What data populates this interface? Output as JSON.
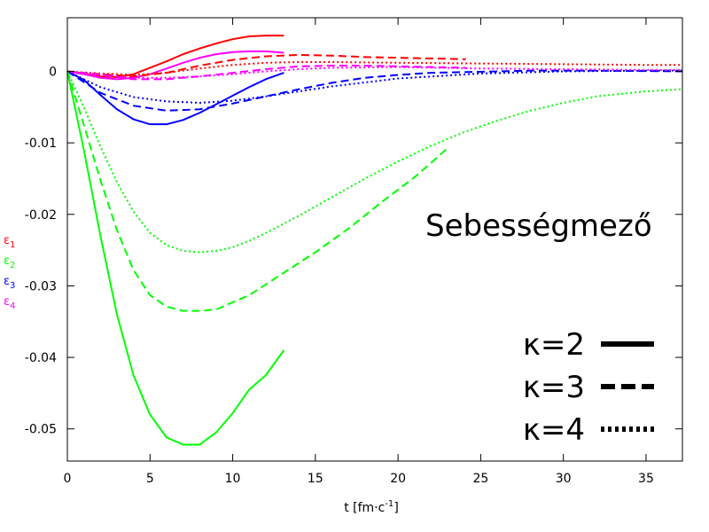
{
  "chart_data": {
    "type": "line",
    "title": "Sebességmező",
    "xlabel": {
      "prefix": "t [fm·c",
      "sup": "-1",
      "suffix": "]"
    },
    "xlim": [
      0,
      37.2
    ],
    "ylim": [
      -0.0545,
      0.0075
    ],
    "xticks": [
      0,
      5,
      10,
      15,
      20,
      25,
      30,
      35
    ],
    "yticks": [
      0,
      -0.01,
      -0.02,
      -0.03,
      -0.04,
      -0.05
    ],
    "ytick_labels": [
      "0",
      "-0.01",
      "-0.02",
      "-0.03",
      "-0.04",
      "-0.05"
    ],
    "grid": false,
    "ylabel_entries": [
      {
        "sym": "ε",
        "sub": "1",
        "color": "#ff0000"
      },
      {
        "sym": "ε",
        "sub": "2",
        "color": "#00ff00"
      },
      {
        "sym": "ε",
        "sub": "3",
        "color": "#0000ff"
      },
      {
        "sym": "ε",
        "sub": "4",
        "color": "#ff00ff"
      }
    ],
    "legend": {
      "position": "bottom-right",
      "entries": [
        {
          "label": "κ=2",
          "dash": "solid"
        },
        {
          "label": "κ=3",
          "dash": "dashed"
        },
        {
          "label": "κ=4",
          "dash": "dotted"
        }
      ]
    },
    "series": [
      {
        "eps": 1,
        "kappa": 2,
        "color": "#ff0000",
        "dash": "solid",
        "x": [
          0,
          1,
          2,
          3,
          4,
          5,
          6,
          7,
          8,
          9,
          10,
          11,
          12,
          13.1
        ],
        "y": [
          0,
          -0.0003,
          -0.0007,
          -0.0008,
          -0.0004,
          0.0005,
          0.0014,
          0.0024,
          0.0032,
          0.0039,
          0.0045,
          0.0049,
          0.005,
          0.005
        ]
      },
      {
        "eps": 4,
        "kappa": 2,
        "color": "#ff00ff",
        "dash": "solid",
        "x": [
          0,
          1,
          2,
          3,
          4,
          5,
          6,
          7,
          8,
          9,
          10,
          11,
          12,
          13.1
        ],
        "y": [
          0,
          -0.0004,
          -0.0009,
          -0.0011,
          -0.0009,
          -0.0004,
          0.0004,
          0.0012,
          0.0019,
          0.0024,
          0.0027,
          0.0028,
          0.0028,
          0.0026
        ]
      },
      {
        "eps": 3,
        "kappa": 2,
        "color": "#0000ff",
        "dash": "solid",
        "x": [
          0,
          1,
          2,
          3,
          4,
          5,
          6,
          7,
          8,
          9,
          10,
          11,
          12,
          13.1
        ],
        "y": [
          0,
          -0.0012,
          -0.0033,
          -0.0053,
          -0.0067,
          -0.0074,
          -0.0074,
          -0.0068,
          -0.0058,
          -0.0046,
          -0.0034,
          -0.0022,
          -0.0011,
          -0.0002
        ]
      },
      {
        "eps": 2,
        "kappa": 2,
        "color": "#00ff00",
        "dash": "solid",
        "x": [
          0,
          1,
          2,
          3,
          4,
          5,
          6,
          7,
          8,
          9,
          10,
          11,
          12,
          13.1
        ],
        "y": [
          0,
          -0.011,
          -0.023,
          -0.034,
          -0.0425,
          -0.048,
          -0.0512,
          -0.0522,
          -0.0522,
          -0.0505,
          -0.0478,
          -0.0445,
          -0.0425,
          -0.039
        ]
      },
      {
        "eps": 1,
        "kappa": 3,
        "color": "#ff0000",
        "dash": "dashed",
        "x": [
          0,
          2,
          4,
          6,
          8,
          10,
          12,
          14,
          16,
          18,
          20,
          22,
          24.1
        ],
        "y": [
          0,
          -0.0004,
          -0.0007,
          -0.0002,
          0.0008,
          0.0016,
          0.0021,
          0.0023,
          0.0022,
          0.002,
          0.0019,
          0.0018,
          0.0017
        ]
      },
      {
        "eps": 4,
        "kappa": 3,
        "color": "#ff00ff",
        "dash": "dashed",
        "x": [
          0,
          2,
          4,
          6,
          8,
          10,
          12,
          14,
          16,
          18,
          20,
          22,
          24.1
        ],
        "y": [
          0,
          -0.0005,
          -0.0011,
          -0.0011,
          -0.0007,
          -0.0002,
          0.0003,
          0.0007,
          0.0008,
          0.0008,
          0.0007,
          0.0006,
          0.0005
        ]
      },
      {
        "eps": 3,
        "kappa": 3,
        "color": "#0000ff",
        "dash": "dashed",
        "x": [
          0,
          2,
          4,
          6,
          8,
          10,
          12,
          14,
          16,
          18,
          20,
          22,
          24.1,
          28,
          32,
          37.2
        ],
        "y": [
          0,
          -0.003,
          -0.0048,
          -0.0055,
          -0.0053,
          -0.0045,
          -0.0035,
          -0.0025,
          -0.0016,
          -0.0009,
          -0.0005,
          -0.0002,
          -0.0001,
          0.0001,
          0.0001,
          0.0
        ]
      },
      {
        "eps": 2,
        "kappa": 3,
        "color": "#00ff00",
        "dash": "dashed",
        "x": [
          0,
          1,
          2,
          3,
          4,
          5,
          6,
          7,
          8,
          9,
          10,
          11,
          12,
          13,
          15,
          17,
          19,
          21,
          22,
          23.1
        ],
        "y": [
          0,
          -0.0075,
          -0.0152,
          -0.0222,
          -0.0278,
          -0.0313,
          -0.0329,
          -0.0335,
          -0.0335,
          -0.0333,
          -0.0323,
          -0.0313,
          -0.0298,
          -0.0283,
          -0.0253,
          -0.022,
          -0.0183,
          -0.0148,
          -0.0128,
          -0.0105
        ]
      },
      {
        "eps": 1,
        "kappa": 4,
        "color": "#ff0000",
        "dash": "dotted",
        "x": [
          0,
          2,
          4,
          6,
          8,
          10,
          12,
          14,
          16,
          20,
          25,
          30,
          35,
          37.2
        ],
        "y": [
          0,
          -0.0003,
          -0.0005,
          -0.0002,
          0.0004,
          0.0009,
          0.0012,
          0.0013,
          0.0013,
          0.0012,
          0.0011,
          0.001,
          0.0009,
          0.0009
        ]
      },
      {
        "eps": 4,
        "kappa": 4,
        "color": "#ff00ff",
        "dash": "dotted",
        "x": [
          0,
          2,
          4,
          6,
          8,
          10,
          12,
          14,
          16,
          20,
          25,
          30,
          35,
          37.2
        ],
        "y": [
          0,
          -0.0004,
          -0.0009,
          -0.0009,
          -0.0007,
          -0.0004,
          0.0,
          0.0003,
          0.0005,
          0.0006,
          0.0004,
          0.0003,
          0.0002,
          0.0002
        ]
      },
      {
        "eps": 3,
        "kappa": 4,
        "color": "#0000ff",
        "dash": "dotted",
        "x": [
          0,
          2,
          4,
          6,
          8,
          10,
          12,
          14,
          16,
          20,
          25,
          30,
          35,
          37.2
        ],
        "y": [
          0,
          -0.0022,
          -0.0036,
          -0.0042,
          -0.0044,
          -0.0041,
          -0.0035,
          -0.0028,
          -0.0021,
          -0.001,
          -0.0003,
          0.0,
          0.0001,
          0.0001
        ]
      },
      {
        "eps": 2,
        "kappa": 4,
        "color": "#00ff00",
        "dash": "dotted",
        "x": [
          0,
          1,
          2,
          3,
          4,
          5,
          6,
          7,
          8,
          9,
          10,
          11,
          12,
          14,
          16,
          18,
          20,
          22,
          24,
          26,
          28,
          30,
          32,
          35,
          37.2
        ],
        "y": [
          0,
          -0.005,
          -0.0105,
          -0.0155,
          -0.0196,
          -0.0226,
          -0.0243,
          -0.0251,
          -0.0253,
          -0.0251,
          -0.0246,
          -0.0237,
          -0.0226,
          -0.0202,
          -0.0176,
          -0.015,
          -0.0126,
          -0.0104,
          -0.0085,
          -0.0069,
          -0.0055,
          -0.0044,
          -0.0035,
          -0.0028,
          -0.0025
        ]
      }
    ]
  }
}
